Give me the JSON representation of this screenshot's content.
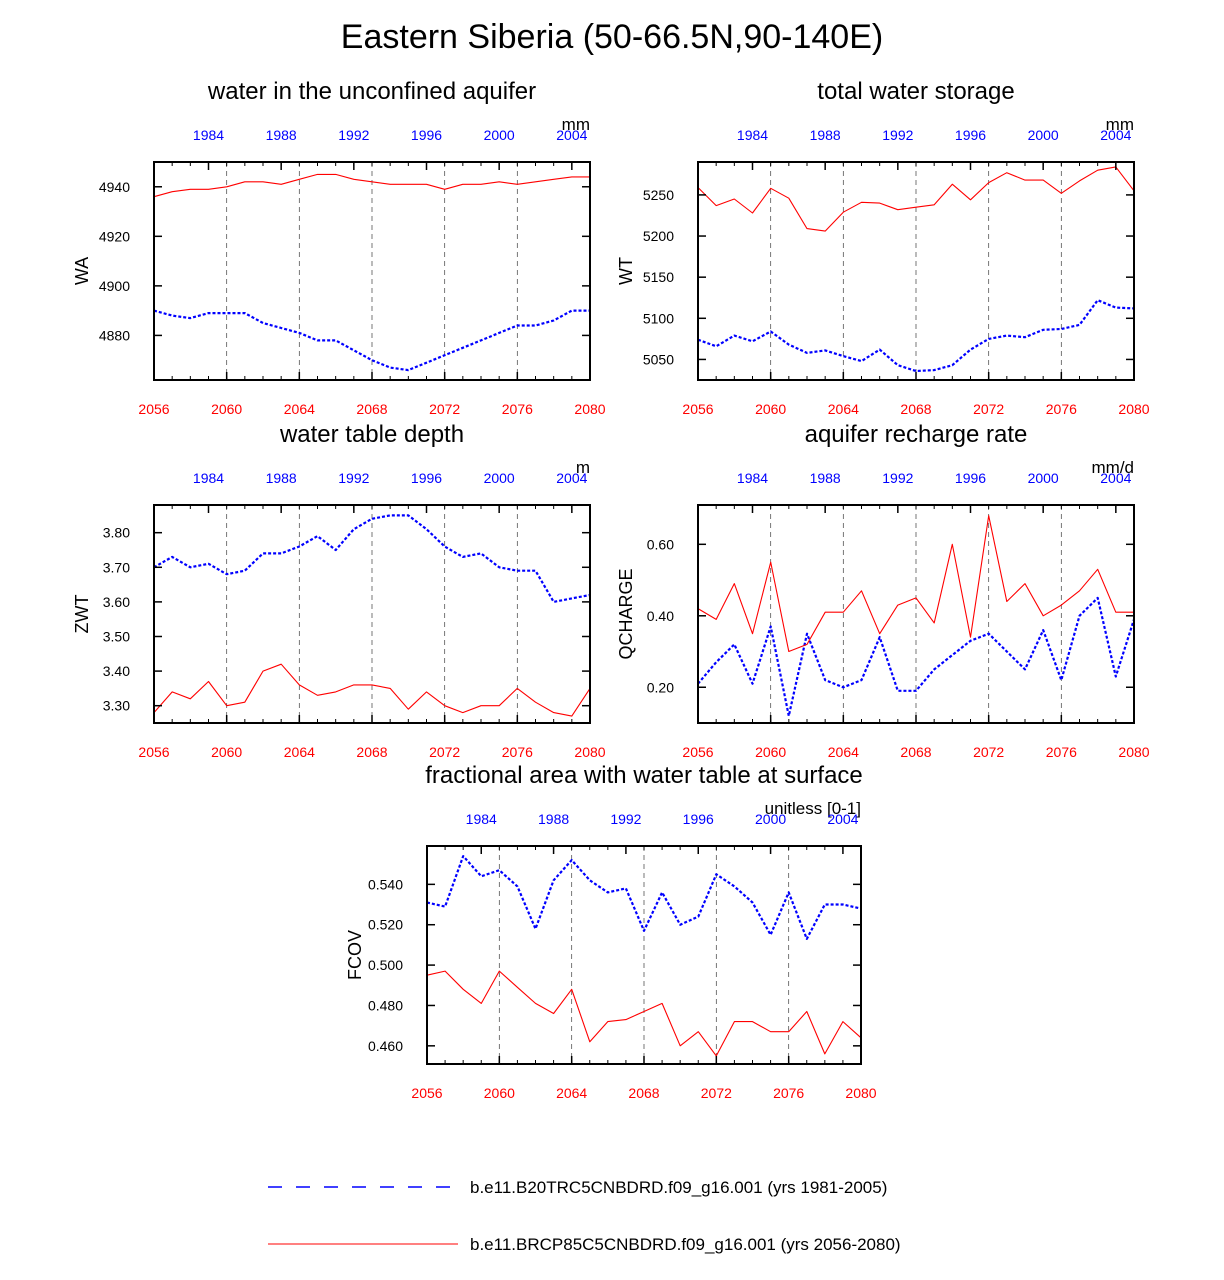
{
  "figure_title": "Eastern Siberia (50-66.5N,90-140E)",
  "colors": {
    "ctrl": "#0000ff",
    "future": "#ff0000",
    "axis": "#000000"
  },
  "legend": [
    {
      "label": "b.e11.B20TRC5CNBDRD.f09_g16.001 (yrs 1981-2005)",
      "color": "#0000ff",
      "style": "dashed"
    },
    {
      "label": "b.e11.BRCP85C5CNBDRD.f09_g16.001 (yrs 2056-2080)",
      "color": "#ff0000",
      "style": "solid"
    }
  ],
  "chart_data": [
    {
      "id": "wa",
      "type": "line",
      "title": "water in the unconfined aquifer",
      "ylabel": "WA",
      "units": "mm",
      "x_bottom": {
        "range": [
          2056,
          2080
        ],
        "ticks": [
          "2056",
          "2060",
          "2064",
          "2068",
          "2072",
          "2076",
          "2080"
        ]
      },
      "x_top": {
        "range": [
          1981,
          2005
        ],
        "ticks": [
          "1984",
          "1988",
          "1992",
          "1996",
          "2000",
          "2004"
        ]
      },
      "ylim": [
        4862,
        4950
      ],
      "yticks": [
        4880,
        4900,
        4920,
        4940
      ],
      "ytick_labels": [
        "4880",
        "4900",
        "4920",
        "4940"
      ],
      "series": [
        {
          "name": "b.e11.B20TRC5CNBDRD.f09_g16.001 (yrs 1981-2005)",
          "color": "#0000ff",
          "dashed": true,
          "values": [
            4890,
            4888,
            4887,
            4889,
            4889,
            4889,
            4885,
            4883,
            4881,
            4878,
            4878,
            4874,
            4870,
            4867,
            4866,
            4869,
            4872,
            4875,
            4878,
            4881,
            4884,
            4884,
            4886,
            4890,
            4890
          ]
        },
        {
          "name": "b.e11.BRCP85C5CNBDRD.f09_g16.001 (yrs 2056-2080)",
          "color": "#ff0000",
          "dashed": false,
          "values": [
            4936,
            4938,
            4939,
            4939,
            4940,
            4942,
            4942,
            4941,
            4943,
            4945,
            4945,
            4943,
            4942,
            4941,
            4941,
            4941,
            4939,
            4941,
            4941,
            4942,
            4941,
            4942,
            4943,
            4944,
            4944
          ]
        }
      ]
    },
    {
      "id": "wt",
      "type": "line",
      "title": "total water storage",
      "ylabel": "WT",
      "units": "mm",
      "x_bottom": {
        "range": [
          2056,
          2080
        ],
        "ticks": [
          "2056",
          "2060",
          "2064",
          "2068",
          "2072",
          "2076",
          "2080"
        ]
      },
      "x_top": {
        "range": [
          1981,
          2005
        ],
        "ticks": [
          "1984",
          "1988",
          "1992",
          "1996",
          "2000",
          "2004"
        ]
      },
      "ylim": [
        5025,
        5290
      ],
      "yticks": [
        5050,
        5100,
        5150,
        5200,
        5250
      ],
      "ytick_labels": [
        "5050",
        "5100",
        "5150",
        "5200",
        "5250"
      ],
      "series": [
        {
          "name": "b.e11.B20TRC5CNBDRD.f09_g16.001 (yrs 1981-2005)",
          "color": "#0000ff",
          "dashed": true,
          "values": [
            5074,
            5066,
            5079,
            5072,
            5084,
            5068,
            5058,
            5061,
            5054,
            5048,
            5062,
            5043,
            5036,
            5037,
            5043,
            5062,
            5075,
            5079,
            5077,
            5086,
            5087,
            5092,
            5122,
            5113,
            5112
          ]
        },
        {
          "name": "b.e11.BRCP85C5CNBDRD.f09_g16.001 (yrs 2056-2080)",
          "color": "#ff0000",
          "dashed": false,
          "values": [
            5259,
            5237,
            5245,
            5228,
            5258,
            5246,
            5209,
            5206,
            5229,
            5241,
            5240,
            5232,
            5235,
            5238,
            5263,
            5244,
            5265,
            5277,
            5268,
            5268,
            5252,
            5267,
            5280,
            5284,
            5255
          ]
        }
      ]
    },
    {
      "id": "zwt",
      "type": "line",
      "title": "water table depth",
      "ylabel": "ZWT",
      "units": "m",
      "x_bottom": {
        "range": [
          2056,
          2080
        ],
        "ticks": [
          "2056",
          "2060",
          "2064",
          "2068",
          "2072",
          "2076",
          "2080"
        ]
      },
      "x_top": {
        "range": [
          1981,
          2005
        ],
        "ticks": [
          "1984",
          "1988",
          "1992",
          "1996",
          "2000",
          "2004"
        ]
      },
      "ylim": [
        3.25,
        3.88
      ],
      "yticks": [
        3.3,
        3.4,
        3.5,
        3.6,
        3.7,
        3.8
      ],
      "ytick_labels": [
        "3.30",
        "3.40",
        "3.50",
        "3.60",
        "3.70",
        "3.80"
      ],
      "series": [
        {
          "name": "b.e11.B20TRC5CNBDRD.f09_g16.001 (yrs 1981-2005)",
          "color": "#0000ff",
          "dashed": true,
          "values": [
            3.7,
            3.73,
            3.7,
            3.71,
            3.68,
            3.69,
            3.74,
            3.74,
            3.76,
            3.79,
            3.75,
            3.81,
            3.84,
            3.85,
            3.85,
            3.81,
            3.76,
            3.73,
            3.74,
            3.7,
            3.69,
            3.69,
            3.6,
            3.61,
            3.62
          ]
        },
        {
          "name": "b.e11.BRCP85C5CNBDRD.f09_g16.001 (yrs 2056-2080)",
          "color": "#ff0000",
          "dashed": false,
          "values": [
            3.28,
            3.34,
            3.32,
            3.37,
            3.3,
            3.31,
            3.4,
            3.42,
            3.36,
            3.33,
            3.34,
            3.36,
            3.36,
            3.35,
            3.29,
            3.34,
            3.3,
            3.28,
            3.3,
            3.3,
            3.35,
            3.31,
            3.28,
            3.27,
            3.35
          ]
        }
      ]
    },
    {
      "id": "qcharge",
      "type": "line",
      "title": "aquifer recharge rate",
      "ylabel": "QCHARGE",
      "units": "mm/d",
      "x_bottom": {
        "range": [
          2056,
          2080
        ],
        "ticks": [
          "2056",
          "2060",
          "2064",
          "2068",
          "2072",
          "2076",
          "2080"
        ]
      },
      "x_top": {
        "range": [
          1981,
          2005
        ],
        "ticks": [
          "1984",
          "1988",
          "1992",
          "1996",
          "2000",
          "2004"
        ]
      },
      "ylim": [
        0.1,
        0.71
      ],
      "yticks": [
        0.2,
        0.4,
        0.6
      ],
      "ytick_labels": [
        "0.20",
        "0.40",
        "0.60"
      ],
      "series": [
        {
          "name": "b.e11.B20TRC5CNBDRD.f09_g16.001 (yrs 1981-2005)",
          "color": "#0000ff",
          "dashed": true,
          "values": [
            0.21,
            0.27,
            0.32,
            0.21,
            0.37,
            0.12,
            0.35,
            0.22,
            0.2,
            0.22,
            0.34,
            0.19,
            0.19,
            0.25,
            0.29,
            0.33,
            0.35,
            0.3,
            0.25,
            0.36,
            0.22,
            0.4,
            0.45,
            0.23,
            0.39
          ]
        },
        {
          "name": "b.e11.BRCP85C5CNBDRD.f09_g16.001 (yrs 2056-2080)",
          "color": "#ff0000",
          "dashed": false,
          "values": [
            0.42,
            0.39,
            0.49,
            0.35,
            0.55,
            0.3,
            0.32,
            0.41,
            0.41,
            0.47,
            0.35,
            0.43,
            0.45,
            0.38,
            0.6,
            0.34,
            0.68,
            0.44,
            0.49,
            0.4,
            0.43,
            0.47,
            0.53,
            0.41,
            0.41
          ]
        }
      ]
    },
    {
      "id": "fcov",
      "type": "line",
      "title": "fractional area with water table at surface",
      "ylabel": "FCOV",
      "units": "unitless [0-1]",
      "x_bottom": {
        "range": [
          2056,
          2080
        ],
        "ticks": [
          "2056",
          "2060",
          "2064",
          "2068",
          "2072",
          "2076",
          "2080"
        ]
      },
      "x_top": {
        "range": [
          1981,
          2005
        ],
        "ticks": [
          "1984",
          "1988",
          "1992",
          "1996",
          "2000",
          "2004"
        ]
      },
      "ylim": [
        0.451,
        0.559
      ],
      "yticks": [
        0.46,
        0.48,
        0.5,
        0.52,
        0.54
      ],
      "ytick_labels": [
        "0.460",
        "0.480",
        "0.500",
        "0.520",
        "0.540"
      ],
      "series": [
        {
          "name": "b.e11.B20TRC5CNBDRD.f09_g16.001 (yrs 1981-2005)",
          "color": "#0000ff",
          "dashed": true,
          "values": [
            0.531,
            0.529,
            0.554,
            0.544,
            0.547,
            0.539,
            0.518,
            0.542,
            0.552,
            0.542,
            0.536,
            0.538,
            0.517,
            0.536,
            0.52,
            0.524,
            0.545,
            0.539,
            0.531,
            0.515,
            0.536,
            0.513,
            0.53,
            0.53,
            0.528
          ]
        },
        {
          "name": "b.e11.BRCP85C5CNBDRD.f09_g16.001 (yrs 2056-2080)",
          "color": "#ff0000",
          "dashed": false,
          "values": [
            0.495,
            0.497,
            0.488,
            0.481,
            0.497,
            0.489,
            0.481,
            0.476,
            0.488,
            0.462,
            0.472,
            0.473,
            0.477,
            0.481,
            0.46,
            0.467,
            0.455,
            0.472,
            0.472,
            0.467,
            0.467,
            0.477,
            0.456,
            0.472,
            0.464
          ]
        }
      ]
    }
  ]
}
